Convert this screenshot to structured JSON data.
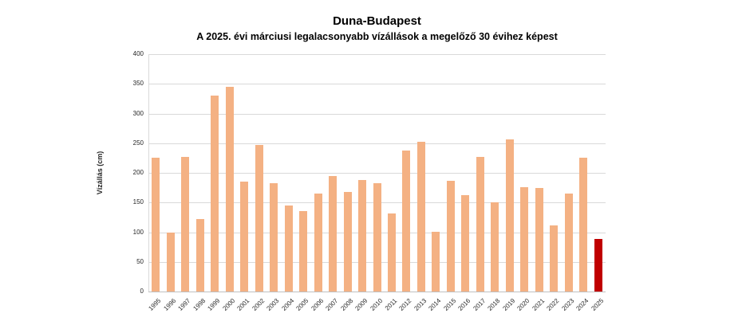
{
  "title": "Duna-Budapest",
  "subtitle": "A 2025. évi márciusi legalacsonyabb vízállások a megelőző 30 évihez képest",
  "chart_data": {
    "type": "bar",
    "title": "Duna-Budapest",
    "subtitle": "A 2025. évi márciusi legalacsonyabb vízállások a megelőző 30 évihez képest",
    "xlabel": "",
    "ylabel": "Vízállás (cm)",
    "ylim": [
      0,
      400
    ],
    "ytick_step": 50,
    "grid": true,
    "legend": "none",
    "categories": [
      "1995",
      "1996",
      "1997",
      "1998",
      "1999",
      "2000",
      "2001",
      "2002",
      "2003",
      "2004",
      "2005",
      "2006",
      "2007",
      "2008",
      "2009",
      "2010",
      "2011",
      "2012",
      "2013",
      "2014",
      "2015",
      "2016",
      "2017",
      "2018",
      "2019",
      "2020",
      "2021",
      "2022",
      "2023",
      "2024",
      "2025"
    ],
    "values": [
      225,
      100,
      227,
      122,
      330,
      345,
      185,
      247,
      183,
      145,
      135,
      165,
      195,
      168,
      188,
      183,
      132,
      237,
      252,
      101,
      187,
      162,
      227,
      150,
      257,
      176,
      174,
      112,
      165,
      226,
      88
    ],
    "bar_color": "#F4B183",
    "highlight_category": "2025",
    "highlight_color": "#C00000",
    "gridline_color": "#D9D9D9",
    "axis_line_color": "#BFBFBF",
    "tick_text_color": "#262626"
  }
}
